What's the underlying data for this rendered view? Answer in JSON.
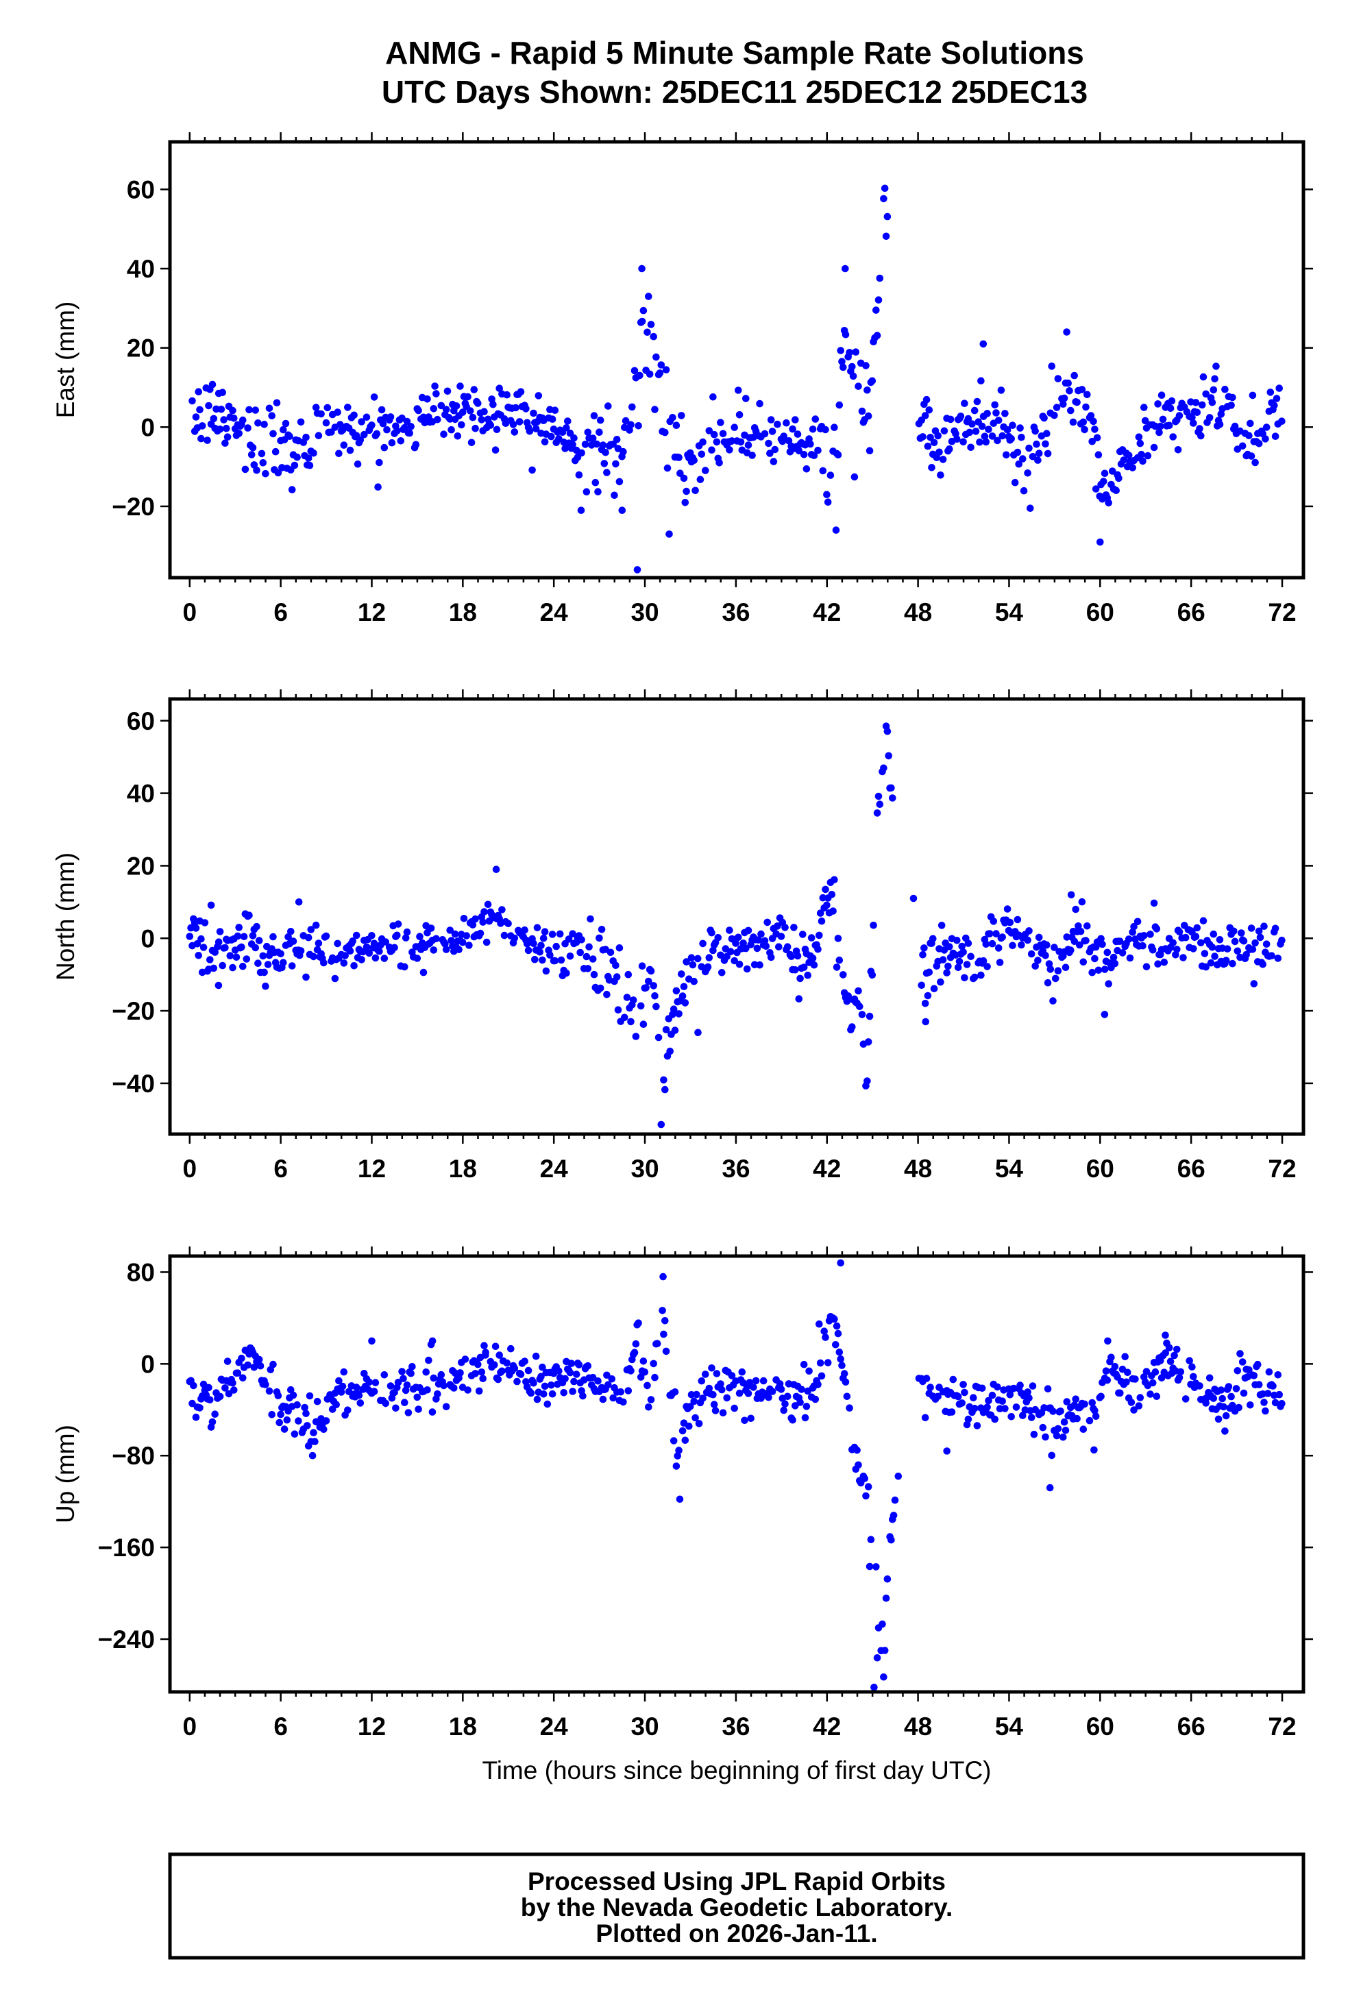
{
  "title_line1": "ANMG - Rapid 5 Minute Sample Rate Solutions",
  "title_line2": "UTC Days Shown:  25DEC11 25DEC12 25DEC13",
  "footer": {
    "line1": "Processed Using JPL Rapid Orbits",
    "line2": "by the Nevada Geodetic Laboratory.",
    "line3": "Plotted on 2026-Jan-11."
  },
  "colors": {
    "points": "#0000ff",
    "axes": "#000000"
  },
  "chart_data": [
    {
      "type": "scatter",
      "name": "east",
      "ylabel": "East (mm)",
      "xlabel": "",
      "xlim": [
        -1.3,
        73.4
      ],
      "ylim": [
        -38,
        72
      ],
      "xticks": [
        0,
        6,
        12,
        18,
        24,
        30,
        36,
        42,
        48,
        54,
        60,
        66,
        72
      ],
      "yticks": [
        -20,
        0,
        20,
        40,
        60
      ],
      "ytick_labels": [
        "−20",
        "0",
        "20",
        "40",
        "60"
      ],
      "anchors": [
        [
          0,
          3,
          5
        ],
        [
          2,
          3,
          5
        ],
        [
          4,
          -3,
          6
        ],
        [
          6,
          -3,
          6
        ],
        [
          7.5,
          -8,
          6
        ],
        [
          9,
          2,
          4
        ],
        [
          12,
          -1,
          4
        ],
        [
          15,
          2,
          4
        ],
        [
          18,
          5,
          4
        ],
        [
          20,
          3,
          5
        ],
        [
          22,
          6,
          4
        ],
        [
          24,
          0,
          4
        ],
        [
          25.5,
          -6,
          4
        ],
        [
          27,
          -6,
          5
        ],
        [
          28.5,
          -7,
          6
        ],
        [
          29.2,
          8,
          7
        ],
        [
          30.2,
          22,
          8
        ],
        [
          31.2,
          6,
          7
        ],
        [
          32.5,
          -9,
          5
        ],
        [
          34,
          -5,
          5
        ],
        [
          36,
          -2,
          5
        ],
        [
          39,
          -3,
          4
        ],
        [
          41,
          -4,
          4
        ],
        [
          42.3,
          -10,
          6
        ],
        [
          43,
          18,
          10
        ],
        [
          44.2,
          3,
          6
        ],
        [
          45,
          10,
          8
        ],
        [
          45.7,
          52,
          6
        ],
        [
          46.1,
          62,
          6
        ],
        [
          47.5,
          null,
          0
        ],
        [
          48,
          3,
          4
        ],
        [
          49.5,
          -6,
          5
        ],
        [
          51,
          0,
          5
        ],
        [
          53,
          3,
          5
        ],
        [
          54.5,
          -4,
          5
        ],
        [
          55.5,
          -12,
          5
        ],
        [
          56.5,
          2,
          4
        ],
        [
          58,
          9,
          3
        ],
        [
          59.3,
          5,
          5
        ],
        [
          60,
          -17,
          5
        ],
        [
          61,
          -12,
          5
        ],
        [
          62.5,
          -4,
          4
        ],
        [
          64,
          3,
          4
        ],
        [
          66,
          3,
          5
        ],
        [
          67.5,
          6,
          4
        ],
        [
          70,
          -3,
          4
        ],
        [
          72,
          4,
          4
        ]
      ],
      "outliers": [
        [
          29.5,
          -36
        ],
        [
          29.8,
          40
        ],
        [
          31.6,
          -27
        ],
        [
          42.6,
          -26
        ],
        [
          43.2,
          40
        ],
        [
          52.3,
          21
        ],
        [
          57.8,
          24
        ],
        [
          60,
          -29
        ],
        [
          58.3,
          13
        ],
        [
          25.8,
          -21
        ],
        [
          28.5,
          -21
        ]
      ]
    },
    {
      "type": "scatter",
      "name": "north",
      "ylabel": "North (mm)",
      "xlabel": "",
      "xlim": [
        -1.3,
        73.4
      ],
      "ylim": [
        -54,
        66
      ],
      "xticks": [
        0,
        6,
        12,
        18,
        24,
        30,
        36,
        42,
        48,
        54,
        60,
        66,
        72
      ],
      "yticks": [
        -40,
        -20,
        0,
        20,
        40,
        60
      ],
      "ytick_labels": [
        "−40",
        "−20",
        "0",
        "20",
        "40",
        "60"
      ],
      "anchors": [
        [
          0,
          3,
          5
        ],
        [
          1.5,
          -4,
          5
        ],
        [
          3.5,
          1,
          5
        ],
        [
          5,
          -5,
          4
        ],
        [
          7,
          -3,
          4
        ],
        [
          10,
          -4,
          3
        ],
        [
          13,
          -3,
          3
        ],
        [
          16,
          -2,
          3
        ],
        [
          18,
          0,
          3
        ],
        [
          19.8,
          6,
          4
        ],
        [
          21,
          2,
          3
        ],
        [
          22.5,
          -2,
          4
        ],
        [
          24,
          -3,
          4
        ],
        [
          25.8,
          -1,
          4
        ],
        [
          27,
          -8,
          6
        ],
        [
          28.5,
          -12,
          6
        ],
        [
          29.5,
          -22,
          5
        ],
        [
          30.4,
          -8,
          6
        ],
        [
          31.1,
          -45,
          6
        ],
        [
          31.8,
          -22,
          5
        ],
        [
          33,
          -8,
          5
        ],
        [
          35,
          -3,
          4
        ],
        [
          37,
          -1,
          4
        ],
        [
          38.6,
          2,
          4
        ],
        [
          40,
          -8,
          5
        ],
        [
          41.3,
          -2,
          5
        ],
        [
          42.1,
          15,
          5
        ],
        [
          42.8,
          2,
          6
        ],
        [
          43.6,
          -25,
          5
        ],
        [
          44.2,
          -12,
          5
        ],
        [
          44.6,
          -42,
          4
        ],
        [
          45.3,
          35,
          6
        ],
        [
          45.9,
          55,
          6
        ],
        [
          46.4,
          35,
          4
        ],
        [
          47.5,
          null,
          0
        ],
        [
          48.2,
          -10,
          6
        ],
        [
          50,
          -3,
          4
        ],
        [
          52,
          -6,
          4
        ],
        [
          54,
          3,
          4
        ],
        [
          55.5,
          -4,
          4
        ],
        [
          57,
          -8,
          5
        ],
        [
          58.5,
          4,
          4
        ],
        [
          60.5,
          -7,
          5
        ],
        [
          62,
          -3,
          4
        ],
        [
          64,
          -1,
          4
        ],
        [
          66,
          1,
          4
        ],
        [
          68,
          -4,
          4
        ],
        [
          70,
          -3,
          4
        ],
        [
          72,
          -2,
          4
        ]
      ],
      "outliers": [
        [
          1.9,
          -13
        ],
        [
          7.2,
          10
        ],
        [
          20.2,
          19
        ],
        [
          47.7,
          11
        ],
        [
          60.3,
          -21
        ],
        [
          33.5,
          -26
        ],
        [
          58.1,
          12
        ],
        [
          48.5,
          -23
        ]
      ]
    },
    {
      "type": "scatter",
      "name": "up",
      "ylabel": "Up (mm)",
      "xlabel": "Time (hours since beginning of first day UTC)",
      "xlim": [
        -1.3,
        73.4
      ],
      "ylim": [
        -286,
        94
      ],
      "xticks": [
        0,
        6,
        12,
        18,
        24,
        30,
        36,
        42,
        48,
        54,
        60,
        66,
        72
      ],
      "yticks": [
        -240,
        -160,
        -80,
        0,
        80
      ],
      "ytick_labels": [
        "−240",
        "−160",
        "−80",
        "0",
        "80"
      ],
      "anchors": [
        [
          0,
          -25,
          12
        ],
        [
          1.5,
          -35,
          12
        ],
        [
          3,
          -10,
          10
        ],
        [
          4.2,
          10,
          8
        ],
        [
          5.5,
          -25,
          12
        ],
        [
          7,
          -40,
          12
        ],
        [
          8.3,
          -60,
          14
        ],
        [
          9.5,
          -30,
          10
        ],
        [
          12,
          -25,
          10
        ],
        [
          15,
          -20,
          12
        ],
        [
          17,
          -15,
          12
        ],
        [
          19,
          -5,
          10
        ],
        [
          21,
          0,
          8
        ],
        [
          23,
          -20,
          12
        ],
        [
          25,
          -10,
          10
        ],
        [
          27,
          -18,
          12
        ],
        [
          28.5,
          -25,
          12
        ],
        [
          29.5,
          20,
          12
        ],
        [
          30.2,
          -30,
          14
        ],
        [
          31.2,
          40,
          18
        ],
        [
          32.2,
          -80,
          18
        ],
        [
          33.2,
          -30,
          12
        ],
        [
          35,
          -20,
          12
        ],
        [
          37,
          -25,
          12
        ],
        [
          39,
          -30,
          12
        ],
        [
          40.5,
          -35,
          10
        ],
        [
          41.5,
          0,
          15
        ],
        [
          42.3,
          40,
          15
        ],
        [
          43,
          5,
          10
        ],
        [
          43.6,
          -70,
          12
        ],
        [
          44.4,
          -100,
          12
        ],
        [
          45.2,
          -200,
          20
        ],
        [
          45.6,
          -240,
          25
        ],
        [
          46,
          -190,
          18
        ],
        [
          46.5,
          -110,
          10
        ],
        [
          47.5,
          null,
          0
        ],
        [
          48,
          -20,
          12
        ],
        [
          50,
          -30,
          12
        ],
        [
          52,
          -35,
          12
        ],
        [
          54,
          -30,
          12
        ],
        [
          56,
          -40,
          12
        ],
        [
          57,
          -60,
          15
        ],
        [
          58.5,
          -35,
          12
        ],
        [
          59.6,
          -50,
          12
        ],
        [
          60.8,
          0,
          15
        ],
        [
          62.5,
          -25,
          12
        ],
        [
          64.3,
          5,
          12
        ],
        [
          66,
          -15,
          12
        ],
        [
          68,
          -35,
          12
        ],
        [
          69.5,
          -15,
          12
        ],
        [
          72,
          -25,
          12
        ]
      ],
      "outliers": [
        [
          8.1,
          -80
        ],
        [
          12,
          20
        ],
        [
          16,
          20
        ],
        [
          31.2,
          76
        ],
        [
          32.3,
          -118
        ],
        [
          42.9,
          88
        ],
        [
          45.1,
          -282
        ],
        [
          46.7,
          -98
        ],
        [
          49.9,
          -76
        ],
        [
          56.7,
          -108
        ],
        [
          59.6,
          -75
        ],
        [
          64.3,
          25
        ],
        [
          19.5,
          10
        ],
        [
          60.5,
          20
        ]
      ]
    }
  ]
}
